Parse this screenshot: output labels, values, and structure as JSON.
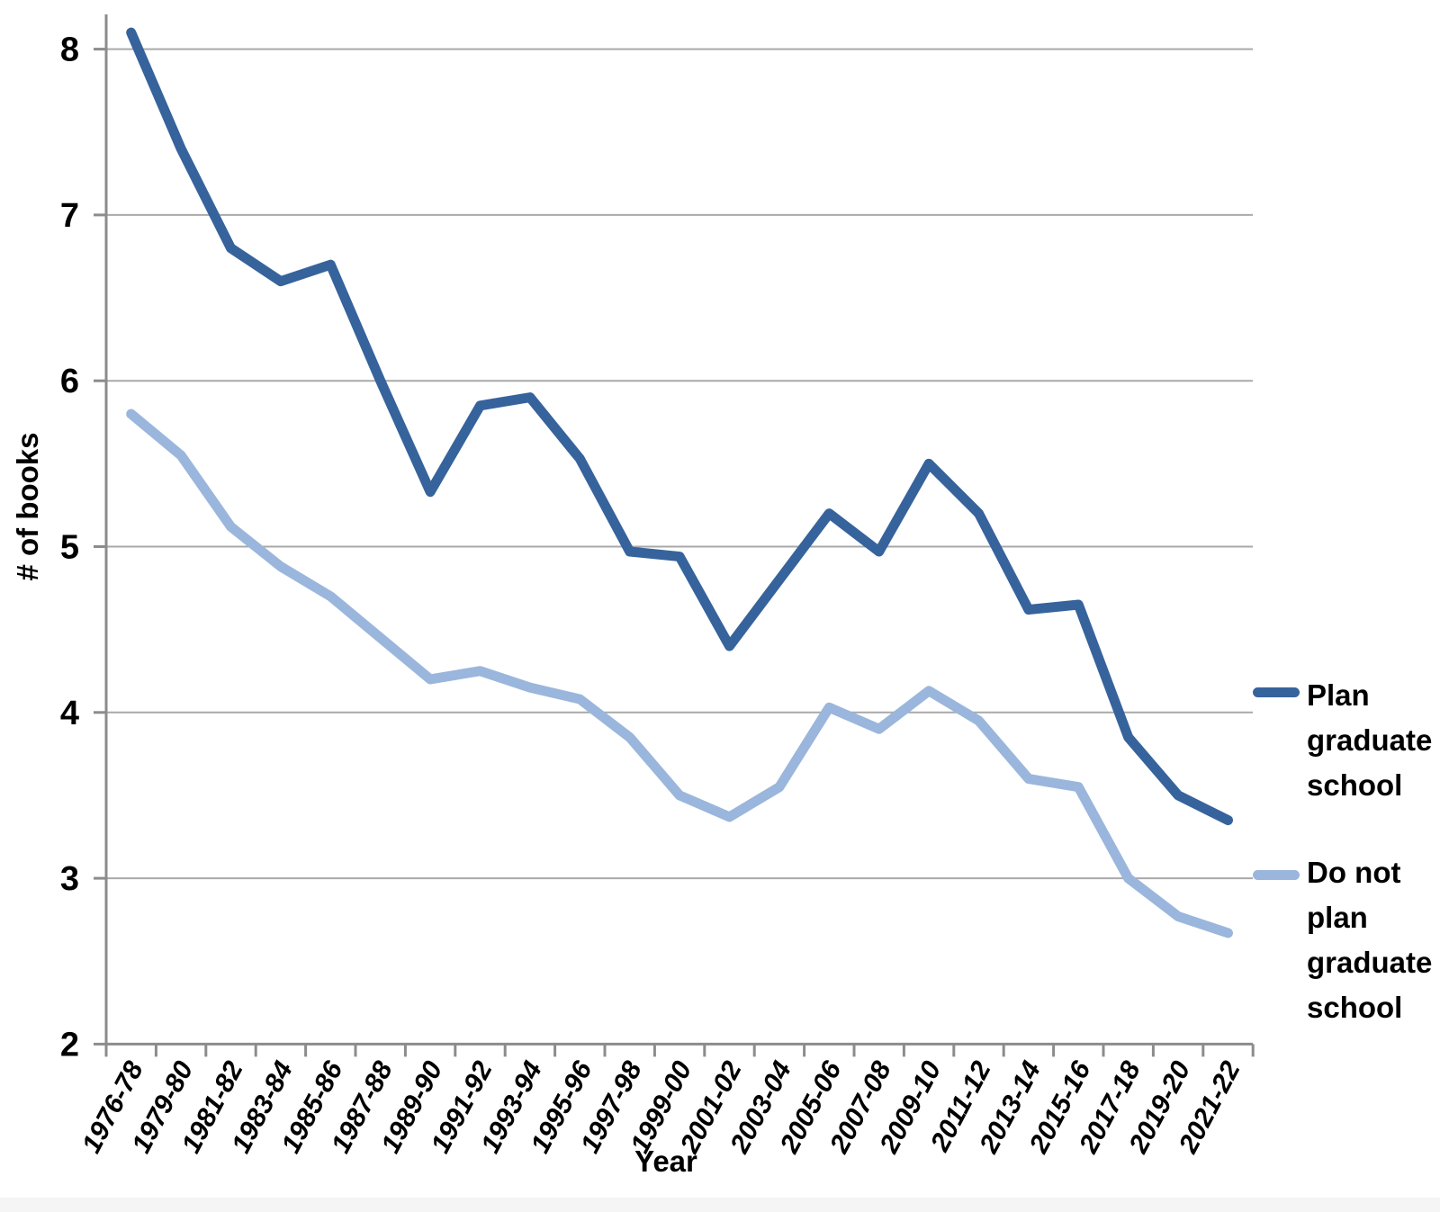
{
  "chart_data": {
    "type": "line",
    "title": "",
    "xlabel": "Year",
    "ylabel": "# of books",
    "categories": [
      "1976-78",
      "1979-80",
      "1981-82",
      "1983-84",
      "1985-86",
      "1987-88",
      "1989-90",
      "1991-92",
      "1993-94",
      "1995-96",
      "1997-98",
      "1999-00",
      "2001-02",
      "2003-04",
      "2005-06",
      "2007-08",
      "2009-10",
      "2011-12",
      "2013-14",
      "2015-16",
      "2017-18",
      "2019-20",
      "2021-22"
    ],
    "series": [
      {
        "name": "Plan graduate school",
        "color": "#36639C",
        "values": [
          8.1,
          7.4,
          6.8,
          6.6,
          6.7,
          6.0,
          5.33,
          5.85,
          5.9,
          5.53,
          4.97,
          4.94,
          4.4,
          4.8,
          5.2,
          4.97,
          5.5,
          5.2,
          4.62,
          4.65,
          3.85,
          3.5,
          3.35
        ]
      },
      {
        "name": "Do not plan graduate school",
        "color": "#9AB6DC",
        "values": [
          5.8,
          5.55,
          5.12,
          4.88,
          4.7,
          4.45,
          4.2,
          4.25,
          4.15,
          4.08,
          3.85,
          3.5,
          3.37,
          3.55,
          4.03,
          3.9,
          4.13,
          3.95,
          3.6,
          3.55,
          3.0,
          2.77,
          2.67
        ]
      }
    ],
    "ylim": [
      2,
      8
    ],
    "yticks": [
      2,
      3,
      4,
      5,
      6,
      7,
      8
    ],
    "grid": "horizontal",
    "legend_position": "right"
  },
  "colors": {
    "gridline": "#A9A9A9",
    "axis": "#8C8C8C",
    "text": "#000000",
    "background": "#FFFFFF",
    "footer_strip": "#F5F5F5"
  }
}
